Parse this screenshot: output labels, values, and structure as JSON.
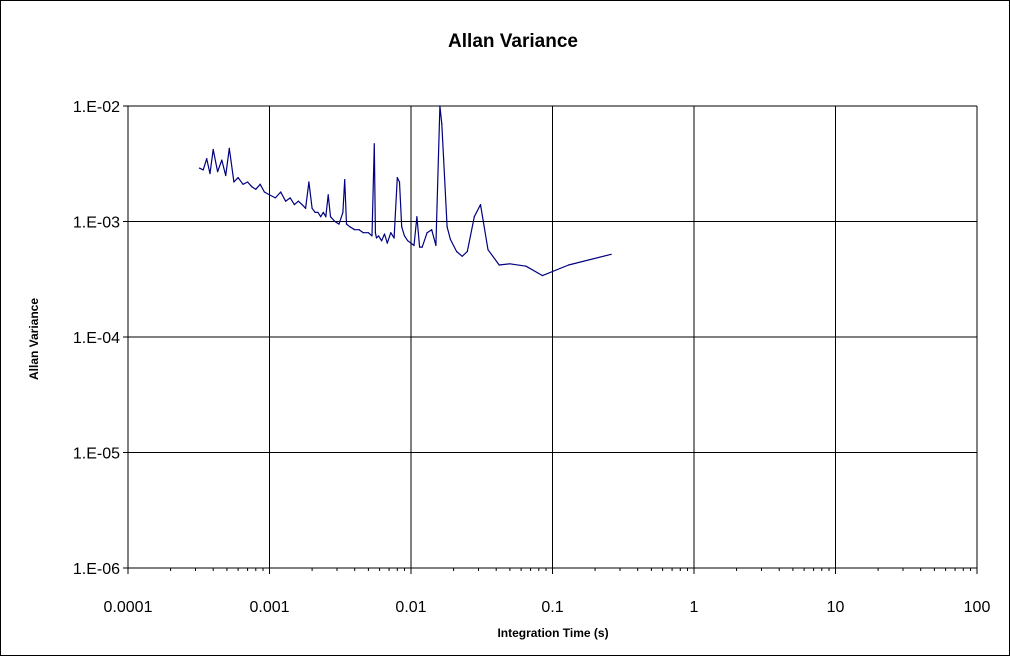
{
  "chart_data": {
    "type": "line",
    "title": "Allan Variance",
    "xlabel": "Integration Time (s)",
    "ylabel": "Allan Variance",
    "x_scale": "log",
    "y_scale": "log",
    "xlim": [
      0.0001,
      100
    ],
    "ylim": [
      1e-06,
      0.01
    ],
    "x_ticks": [
      "0.0001",
      "0.001",
      "0.01",
      "0.1",
      "1",
      "10",
      "100"
    ],
    "y_ticks": [
      "1.E-06",
      "1.E-05",
      "1.E-04",
      "1.E-03",
      "1.E-02"
    ],
    "grid": true,
    "legend": "none",
    "line_color": "#000080",
    "series": [
      {
        "x": [
          0.00032,
          0.00034,
          0.00036,
          0.00038,
          0.0004,
          0.00043,
          0.00046,
          0.00049,
          0.00052,
          0.00056,
          0.0006,
          0.00065,
          0.0007,
          0.00075,
          0.0008,
          0.00086,
          0.00092,
          0.001,
          0.0011,
          0.0012,
          0.0013,
          0.0014,
          0.0015,
          0.0016,
          0.0017,
          0.0018,
          0.0019,
          0.002,
          0.0021,
          0.0022,
          0.0023,
          0.0024,
          0.0025,
          0.0026,
          0.0027,
          0.0029,
          0.0031,
          0.0033,
          0.0034,
          0.0035,
          0.0037,
          0.004,
          0.0043,
          0.0046,
          0.005,
          0.0053,
          0.0055,
          0.0056,
          0.0057,
          0.0059,
          0.0062,
          0.0065,
          0.0068,
          0.0072,
          0.0076,
          0.008,
          0.0083,
          0.0086,
          0.009,
          0.0095,
          0.01,
          0.0105,
          0.011,
          0.0115,
          0.012,
          0.013,
          0.014,
          0.015,
          0.016,
          0.0165,
          0.017,
          0.018,
          0.019,
          0.021,
          0.023,
          0.025,
          0.028,
          0.031,
          0.035,
          0.042,
          0.05,
          0.065,
          0.085,
          0.13,
          0.26
        ],
        "y": [
          0.0029,
          0.0028,
          0.0035,
          0.0026,
          0.0042,
          0.0027,
          0.0034,
          0.0025,
          0.0043,
          0.0022,
          0.0024,
          0.0021,
          0.0022,
          0.002,
          0.0019,
          0.0021,
          0.0018,
          0.0017,
          0.0016,
          0.0018,
          0.0015,
          0.0016,
          0.0014,
          0.0015,
          0.0014,
          0.0013,
          0.0022,
          0.0013,
          0.0012,
          0.0012,
          0.0011,
          0.0012,
          0.0011,
          0.0017,
          0.0011,
          0.001,
          0.00095,
          0.0012,
          0.0023,
          0.00095,
          0.0009,
          0.00085,
          0.00085,
          0.0008,
          0.0008,
          0.00075,
          0.0047,
          0.0008,
          0.00072,
          0.00075,
          0.00068,
          0.00078,
          0.00065,
          0.0008,
          0.00072,
          0.0024,
          0.0022,
          0.0009,
          0.00075,
          0.00068,
          0.00065,
          0.00062,
          0.0011,
          0.0006,
          0.0006,
          0.0008,
          0.00085,
          0.00062,
          0.01,
          0.007,
          0.0035,
          0.0009,
          0.0007,
          0.00055,
          0.0005,
          0.00055,
          0.0011,
          0.0014,
          0.00057,
          0.00042,
          0.00043,
          0.00041,
          0.00034,
          0.00042,
          0.00052
        ]
      }
    ]
  }
}
